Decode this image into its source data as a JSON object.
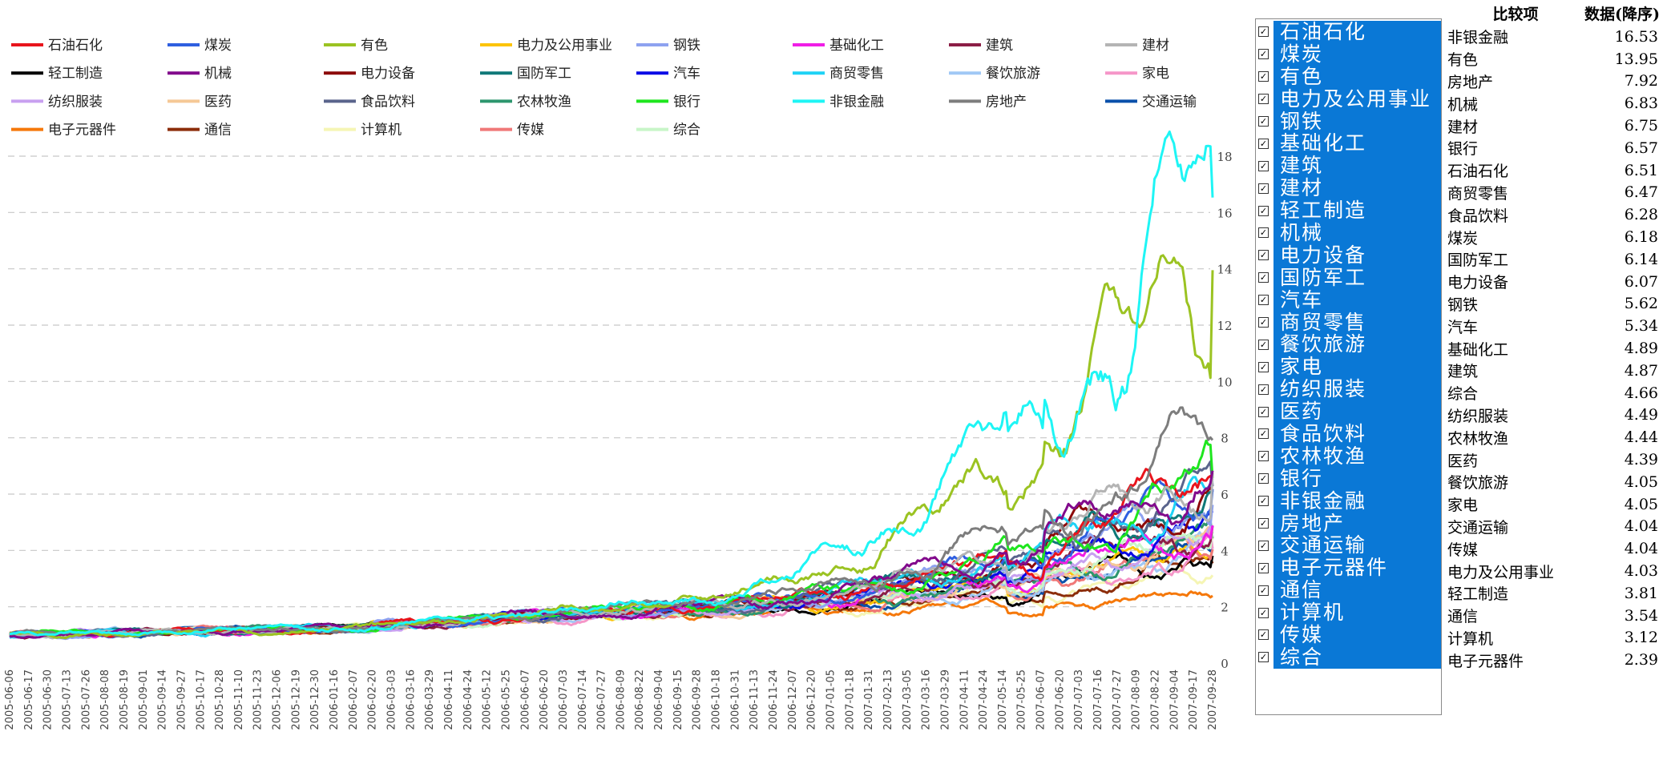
{
  "chart_data": {
    "type": "line",
    "ylim": [
      0,
      18
    ],
    "yticks": [
      0,
      2,
      4,
      6,
      8,
      10,
      12,
      14,
      16,
      18
    ],
    "grid": true,
    "legend_position": "top",
    "x_tick_labels": [
      "2005-06-06",
      "2005-06-17",
      "2005-06-30",
      "2005-07-13",
      "2005-07-26",
      "2005-08-08",
      "2005-08-19",
      "2005-09-01",
      "2005-09-14",
      "2005-09-27",
      "2005-10-17",
      "2005-10-28",
      "2005-11-10",
      "2005-11-23",
      "2005-12-06",
      "2005-12-19",
      "2005-12-30",
      "2006-01-16",
      "2006-02-07",
      "2006-02-20",
      "2006-03-03",
      "2006-03-16",
      "2006-03-29",
      "2006-04-11",
      "2006-04-24",
      "2006-05-12",
      "2006-05-25",
      "2006-06-07",
      "2006-06-20",
      "2006-07-03",
      "2006-07-14",
      "2006-07-27",
      "2006-08-09",
      "2006-08-22",
      "2006-09-04",
      "2006-09-15",
      "2006-09-28",
      "2006-10-18",
      "2006-10-31",
      "2006-11-13",
      "2006-11-24",
      "2006-12-07",
      "2006-12-20",
      "2007-01-05",
      "2007-01-18",
      "2007-01-31",
      "2007-02-13",
      "2007-03-05",
      "2007-03-16",
      "2007-03-29",
      "2007-04-11",
      "2007-04-24",
      "2007-05-14",
      "2007-05-25",
      "2007-06-07",
      "2007-06-20",
      "2007-07-03",
      "2007-07-16",
      "2007-07-27",
      "2007-08-09",
      "2007-08-22",
      "2007-09-04",
      "2007-09-17",
      "2007-09-28"
    ],
    "series": [
      {
        "name": "石油石化",
        "color": "#e8141c",
        "final": 6.51
      },
      {
        "name": "煤炭",
        "color": "#2f5fe0",
        "final": 6.18
      },
      {
        "name": "有色",
        "color": "#9bc322",
        "final": 13.95
      },
      {
        "name": "电力及公用事业",
        "color": "#fcc40a",
        "final": 4.03
      },
      {
        "name": "钢铁",
        "color": "#8ea2f0",
        "final": 5.62
      },
      {
        "name": "基础化工",
        "color": "#f01ee6",
        "final": 4.89
      },
      {
        "name": "建筑",
        "color": "#8c1e46",
        "final": 4.87
      },
      {
        "name": "建材",
        "color": "#b4b4b4",
        "final": 6.75
      },
      {
        "name": "轻工制造",
        "color": "#000000",
        "final": 3.81
      },
      {
        "name": "机械",
        "color": "#820a8c",
        "final": 6.83
      },
      {
        "name": "电力设备",
        "color": "#8c0a0a",
        "final": 6.07
      },
      {
        "name": "国防军工",
        "color": "#0f7878",
        "final": 6.14
      },
      {
        "name": "汽车",
        "color": "#0a0ae6",
        "final": 5.34
      },
      {
        "name": "商贸零售",
        "color": "#1ed2f5",
        "final": 6.47
      },
      {
        "name": "餐饮旅游",
        "color": "#a0c8f5",
        "final": 4.05
      },
      {
        "name": "家电",
        "color": "#f596c8",
        "final": 4.05
      },
      {
        "name": "纺织服装",
        "color": "#c8a0f0",
        "final": 4.49
      },
      {
        "name": "医药",
        "color": "#f5c896",
        "final": 4.39
      },
      {
        "name": "食品饮料",
        "color": "#5a648c",
        "final": 6.28
      },
      {
        "name": "农林牧渔",
        "color": "#2d966e",
        "final": 4.44
      },
      {
        "name": "银行",
        "color": "#1ee61e",
        "final": 6.57
      },
      {
        "name": "非银金融",
        "color": "#1ef5f5",
        "final": 16.53
      },
      {
        "name": "房地产",
        "color": "#7d7d7d",
        "final": 7.92
      },
      {
        "name": "交通运输",
        "color": "#0a50aa",
        "final": 4.04
      },
      {
        "name": "电子元器件",
        "color": "#f5780a",
        "final": 2.39
      },
      {
        "name": "通信",
        "color": "#8c2d0a",
        "final": 3.54
      },
      {
        "name": "计算机",
        "color": "#f5f5b4",
        "final": 3.12
      },
      {
        "name": "传媒",
        "color": "#f07878",
        "final": 4.04
      },
      {
        "name": "综合",
        "color": "#c8f5c8",
        "final": 4.66
      }
    ]
  },
  "selector": {
    "items": [
      "石油石化",
      "煤炭",
      "有色",
      "电力及公用事业",
      "钢铁",
      "基础化工",
      "建筑",
      "建材",
      "轻工制造",
      "机械",
      "电力设备",
      "国防军工",
      "汽车",
      "商贸零售",
      "餐饮旅游",
      "家电",
      "纺织服装",
      "医药",
      "食品饮料",
      "农林牧渔",
      "银行",
      "非银金融",
      "房地产",
      "交通运输",
      "电子元器件",
      "通信",
      "计算机",
      "传媒",
      "综合"
    ],
    "check_glyph": "☑"
  },
  "ranking": {
    "header_name": "比较项",
    "header_value": "数据(降序)",
    "rows": [
      {
        "name": "非银金融",
        "value": "16.53"
      },
      {
        "name": "有色",
        "value": "13.95"
      },
      {
        "name": "房地产",
        "value": "7.92"
      },
      {
        "name": "机械",
        "value": "6.83"
      },
      {
        "name": "建材",
        "value": "6.75"
      },
      {
        "name": "银行",
        "value": "6.57"
      },
      {
        "name": "石油石化",
        "value": "6.51"
      },
      {
        "name": "商贸零售",
        "value": "6.47"
      },
      {
        "name": "食品饮料",
        "value": "6.28"
      },
      {
        "name": "煤炭",
        "value": "6.18"
      },
      {
        "name": "国防军工",
        "value": "6.14"
      },
      {
        "name": "电力设备",
        "value": "6.07"
      },
      {
        "name": "钢铁",
        "value": "5.62"
      },
      {
        "name": "汽车",
        "value": "5.34"
      },
      {
        "name": "基础化工",
        "value": "4.89"
      },
      {
        "name": "建筑",
        "value": "4.87"
      },
      {
        "name": "综合",
        "value": "4.66"
      },
      {
        "name": "纺织服装",
        "value": "4.49"
      },
      {
        "name": "农林牧渔",
        "value": "4.44"
      },
      {
        "name": "医药",
        "value": "4.39"
      },
      {
        "name": "餐饮旅游",
        "value": "4.05"
      },
      {
        "name": "家电",
        "value": "4.05"
      },
      {
        "name": "交通运输",
        "value": "4.04"
      },
      {
        "name": "传媒",
        "value": "4.04"
      },
      {
        "name": "电力及公用事业",
        "value": "4.03"
      },
      {
        "name": "轻工制造",
        "value": "3.81"
      },
      {
        "name": "通信",
        "value": "3.54"
      },
      {
        "name": "计算机",
        "value": "3.12"
      },
      {
        "name": "电子元器件",
        "value": "2.39"
      }
    ]
  }
}
